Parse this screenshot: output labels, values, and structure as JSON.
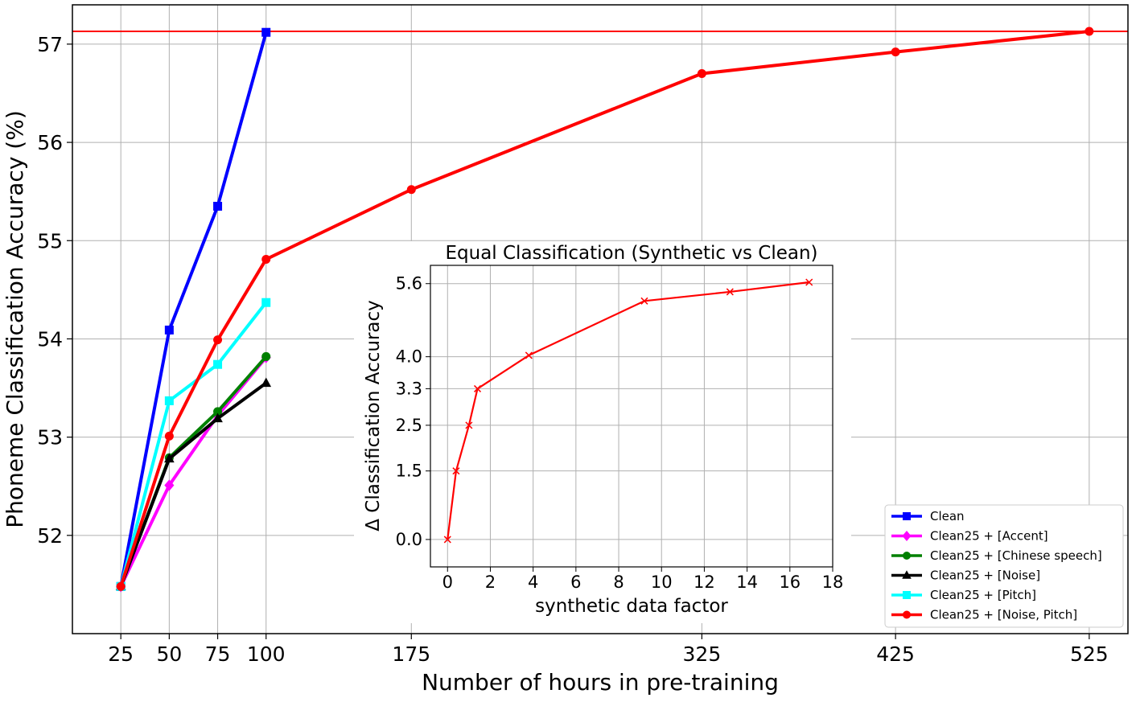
{
  "chart_data": [
    {
      "type": "line",
      "title": "",
      "xlabel": "Number of hours in pre-training",
      "ylabel": "Phoneme Classification Accuracy (%)",
      "xticks": [
        25,
        50,
        75,
        100,
        175,
        325,
        425,
        525
      ],
      "yticks": [
        52,
        53,
        54,
        55,
        56,
        57
      ],
      "xlim": [
        0,
        545
      ],
      "ylim": [
        51.0,
        57.4
      ],
      "grid": true,
      "legend_position": "lower-right",
      "reference_line": {
        "y": 57.13,
        "color": "#ff0000"
      },
      "series": [
        {
          "name": "Clean",
          "color": "#0000ff",
          "marker": "square",
          "x": [
            25,
            50,
            75,
            100
          ],
          "y": [
            51.48,
            54.09,
            55.35,
            57.12
          ]
        },
        {
          "name": "Clean25 + [Accent]",
          "color": "#ff00ff",
          "marker": "diamond",
          "x": [
            25,
            50,
            75,
            100
          ],
          "y": [
            51.48,
            52.51,
            53.22,
            53.81
          ]
        },
        {
          "name": "Clean25 + [Chinese speech]",
          "color": "#008000",
          "marker": "circle",
          "x": [
            25,
            50,
            75,
            100
          ],
          "y": [
            51.48,
            52.79,
            53.26,
            53.82
          ]
        },
        {
          "name": "Clean25 + [Noise]",
          "color": "#000000",
          "marker": "triangle",
          "x": [
            25,
            50,
            75,
            100
          ],
          "y": [
            51.48,
            52.78,
            53.19,
            53.55
          ]
        },
        {
          "name": "Clean25 + [Pitch]",
          "color": "#00ffff",
          "marker": "square",
          "x": [
            25,
            50,
            75,
            100
          ],
          "y": [
            51.48,
            53.37,
            53.74,
            54.37
          ]
        },
        {
          "name": "Clean25 + [Noise, Pitch]",
          "color": "#ff0000",
          "marker": "circle",
          "x": [
            25,
            50,
            75,
            100,
            175,
            325,
            425,
            525
          ],
          "y": [
            51.48,
            53.01,
            53.99,
            54.81,
            55.52,
            56.7,
            56.92,
            57.13
          ]
        }
      ]
    },
    {
      "type": "line",
      "title": "Equal Classification (Synthetic vs Clean)",
      "xlabel": "synthetic data factor",
      "ylabel": "Δ Classification Accuracy",
      "xticks": [
        0,
        2,
        4,
        6,
        8,
        10,
        12,
        14,
        16,
        18
      ],
      "yticks": [
        "0.0",
        "1.5",
        "2.5",
        "3.3",
        "4.0",
        "5.6"
      ],
      "xlim": [
        -0.8,
        18
      ],
      "ylim": [
        -0.6,
        6.0
      ],
      "grid": true,
      "series": [
        {
          "color": "#ff0000",
          "marker": "x",
          "x": [
            0,
            0.4,
            1.0,
            1.4,
            3.8,
            9.2,
            13.2,
            16.9
          ],
          "y": [
            0.0,
            1.5,
            2.5,
            3.3,
            4.03,
            5.22,
            5.42,
            5.63
          ]
        }
      ]
    }
  ]
}
